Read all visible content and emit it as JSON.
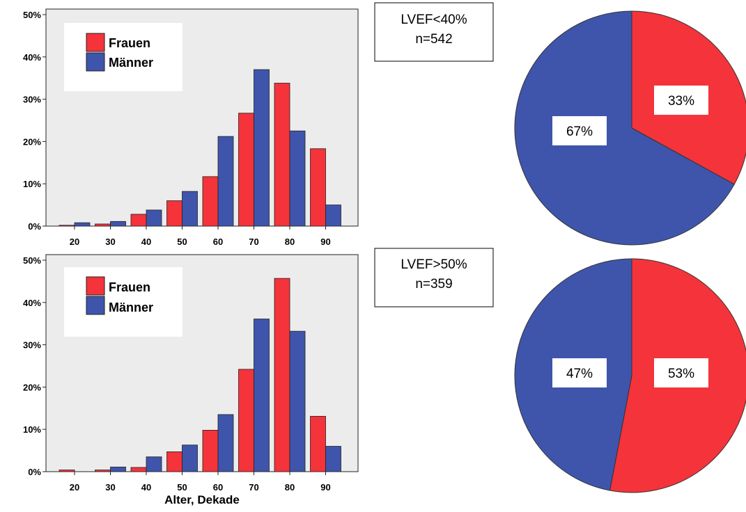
{
  "colors": {
    "frauen": "#f4333a",
    "maenner": "#3f55ac",
    "plot_bg": "#ececec"
  },
  "chart_data": [
    {
      "type": "bar",
      "categories": [
        "20",
        "30",
        "40",
        "50",
        "60",
        "70",
        "80",
        "90"
      ],
      "series": [
        {
          "name": "Frauen",
          "values": [
            0.2,
            0.5,
            2.8,
            6.0,
            11.7,
            26.7,
            33.8,
            18.3
          ]
        },
        {
          "name": "Männer",
          "values": [
            0.8,
            1.1,
            3.8,
            8.2,
            21.2,
            37.0,
            22.5,
            5.0
          ]
        }
      ],
      "ylim": [
        0,
        50
      ],
      "yticks": [
        "0%",
        "10%",
        "20%",
        "30%",
        "40%",
        "50%"
      ],
      "xlabel": "",
      "legend": "top-left"
    },
    {
      "type": "bar",
      "categories": [
        "20",
        "30",
        "40",
        "50",
        "60",
        "70",
        "80",
        "90"
      ],
      "series": [
        {
          "name": "Frauen",
          "values": [
            0.4,
            0.4,
            1.0,
            4.7,
            9.8,
            24.2,
            45.7,
            13.1
          ]
        },
        {
          "name": "Männer",
          "values": [
            0.0,
            1.1,
            3.5,
            6.3,
            13.5,
            36.1,
            33.2,
            6.0
          ]
        }
      ],
      "ylim": [
        0,
        50
      ],
      "yticks": [
        "0%",
        "10%",
        "20%",
        "30%",
        "40%",
        "50%"
      ],
      "xlabel": "Alter, Dekade",
      "legend": "top-left"
    },
    {
      "type": "pie",
      "title": "LVEF<40%",
      "subtitle": "n=542",
      "slices": [
        {
          "name": "Frauen",
          "value": 33,
          "label": "33%"
        },
        {
          "name": "Männer",
          "value": 67,
          "label": "67%"
        }
      ]
    },
    {
      "type": "pie",
      "title": "LVEF>50%",
      "subtitle": "n=359",
      "slices": [
        {
          "name": "Frauen",
          "value": 53,
          "label": "53%"
        },
        {
          "name": "Männer",
          "value": 47,
          "label": "47%"
        }
      ]
    }
  ]
}
